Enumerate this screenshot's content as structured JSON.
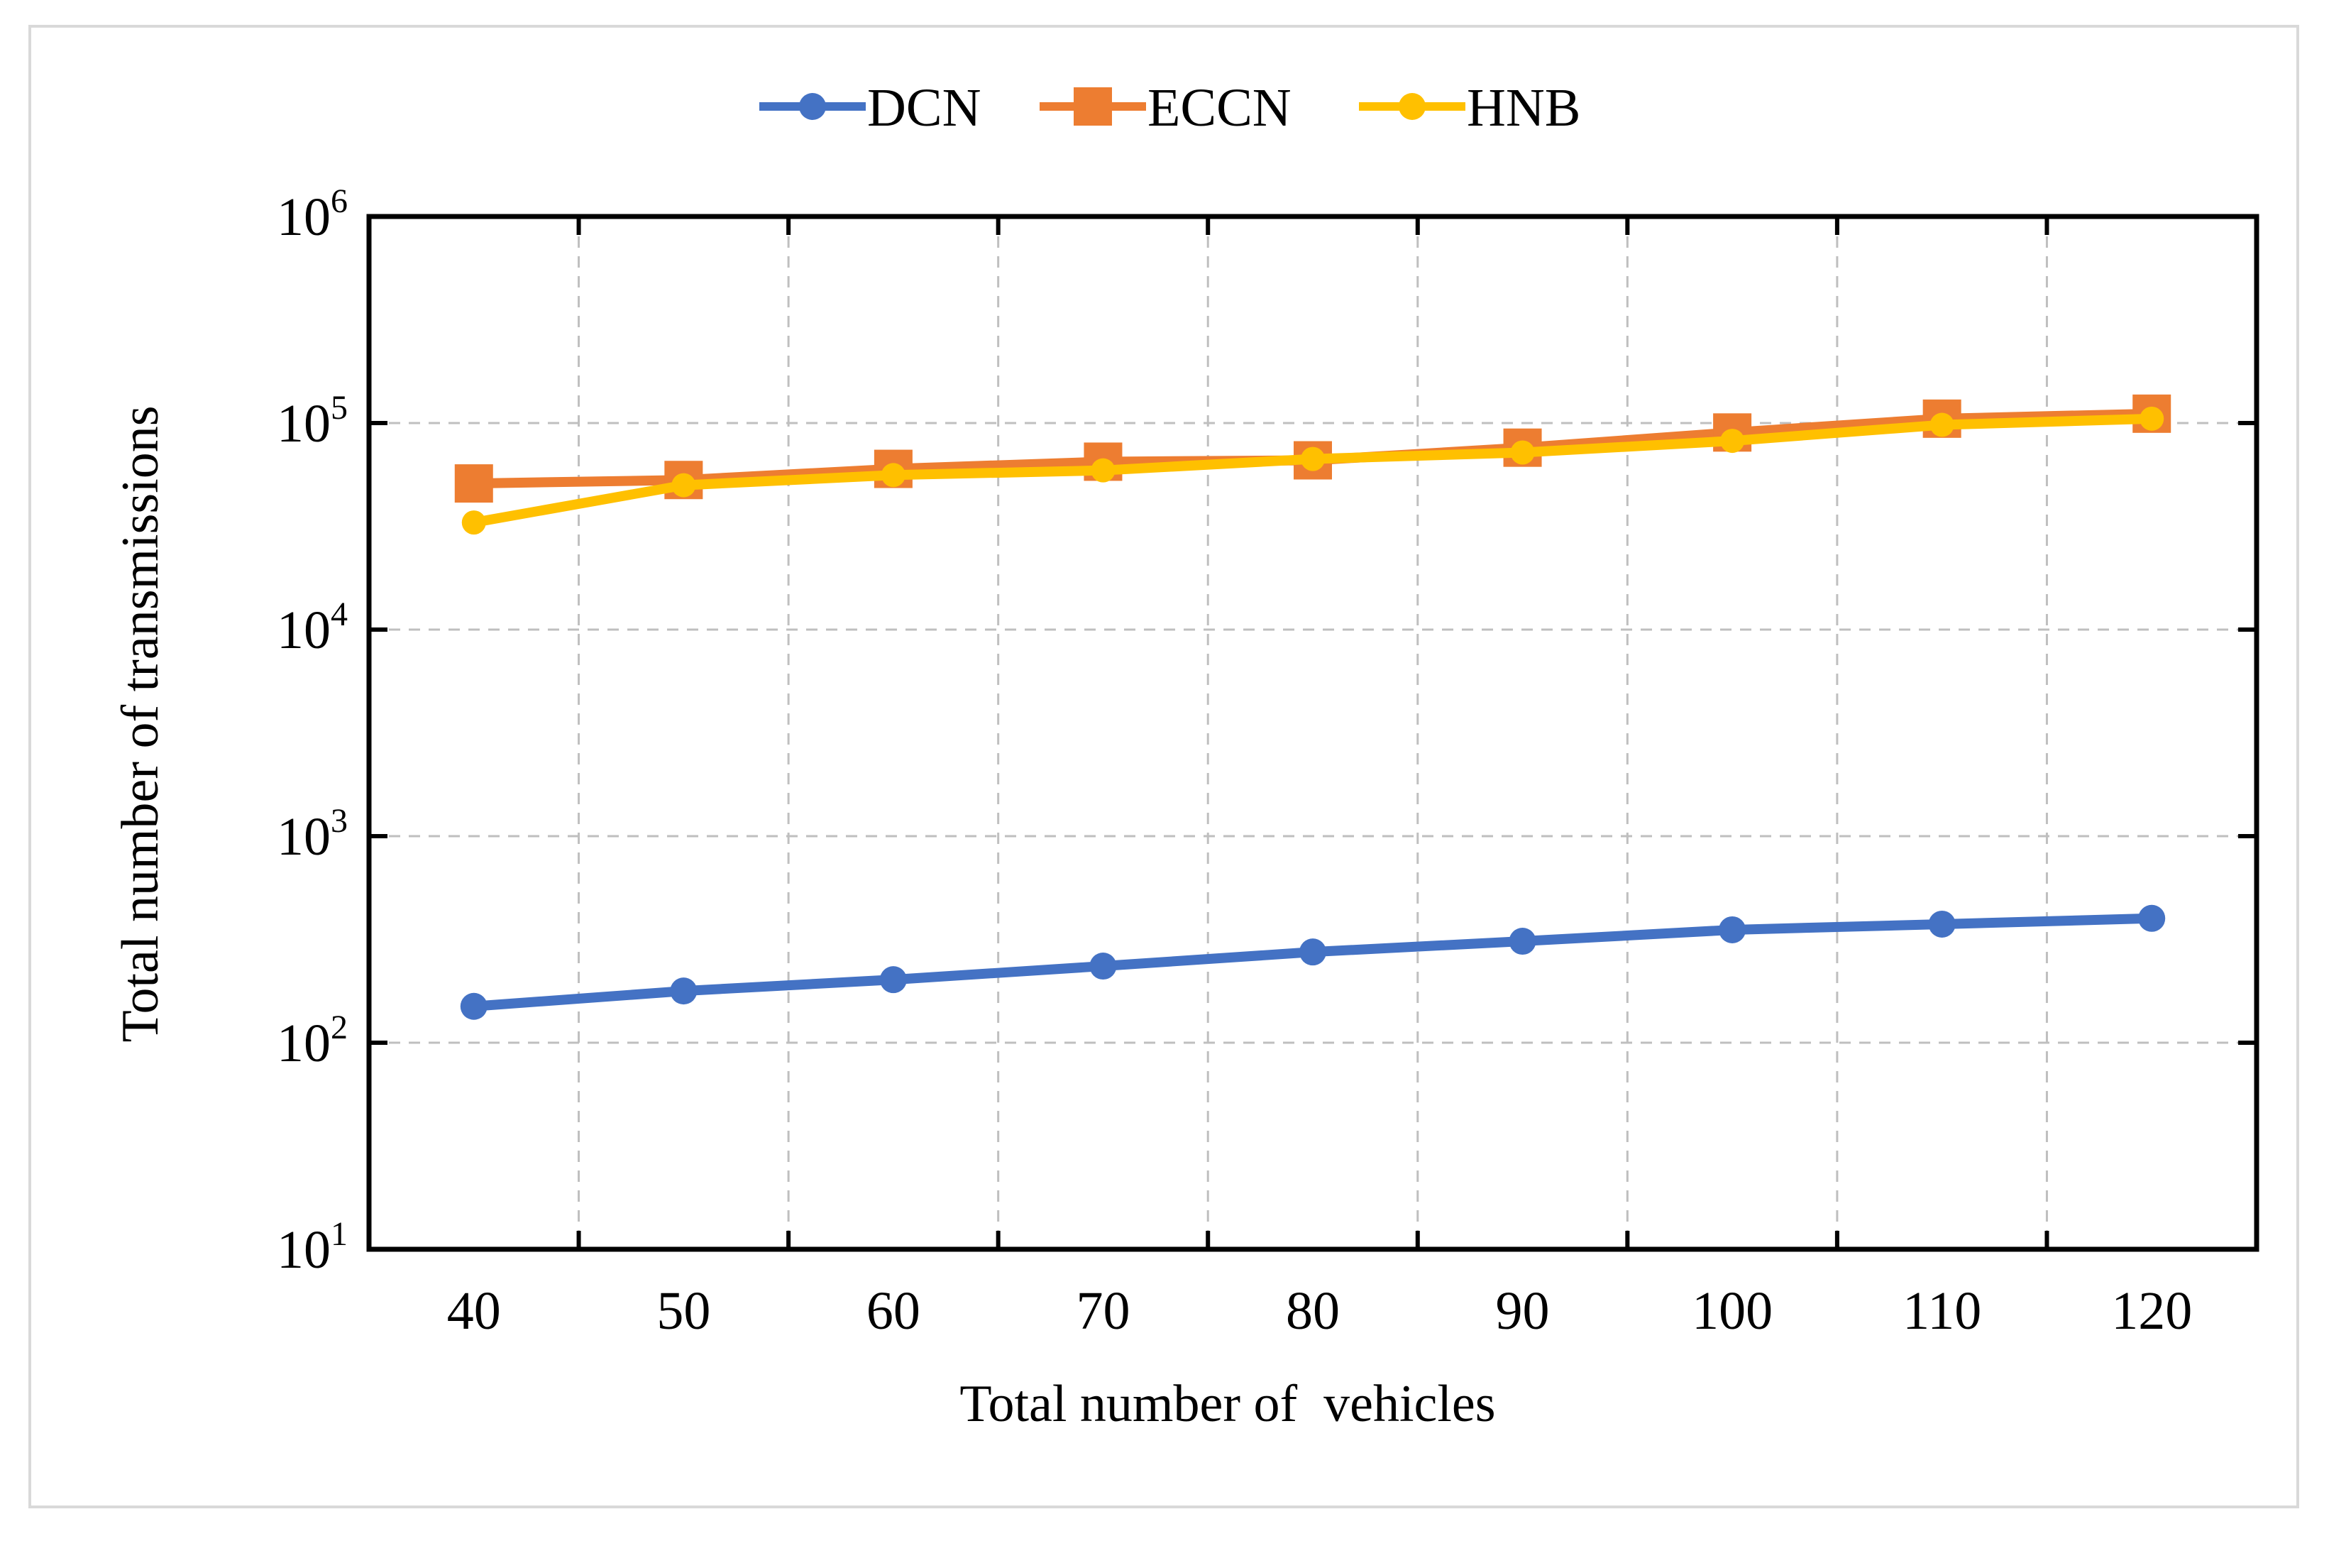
{
  "chart_data": {
    "type": "line",
    "title": "",
    "xlabel": "Total number of  vehicles",
    "ylabel": "Total number of transmissions",
    "y_scale": "log",
    "ylim": [
      10,
      1000000
    ],
    "xlim": [
      35,
      125
    ],
    "grid": true,
    "legend_position": "top-center",
    "categories": [
      40,
      50,
      60,
      70,
      80,
      90,
      100,
      110,
      120
    ],
    "x_tick_labels": [
      "40",
      "50",
      "60",
      "70",
      "80",
      "90",
      "100",
      "110",
      "120"
    ],
    "y_ticks": [
      {
        "value": 10,
        "base": "10",
        "exp": "1"
      },
      {
        "value": 100,
        "base": "10",
        "exp": "2"
      },
      {
        "value": 1000,
        "base": "10",
        "exp": "3"
      },
      {
        "value": 10000,
        "base": "10",
        "exp": "4"
      },
      {
        "value": 100000,
        "base": "10",
        "exp": "5"
      },
      {
        "value": 1000000,
        "base": "10",
        "exp": "6"
      }
    ],
    "series": [
      {
        "name": "DCN",
        "color": "#4472c4",
        "marker": "circle",
        "values": [
          150,
          178,
          202,
          235,
          275,
          310,
          352,
          375,
          400
        ]
      },
      {
        "name": "ECCN",
        "color": "#ed7d31",
        "marker": "square",
        "values": [
          51000,
          53000,
          60000,
          65000,
          66000,
          76000,
          90000,
          105000,
          111000
        ]
      },
      {
        "name": "HNB",
        "color": "#ffc000",
        "marker": "circle",
        "values": [
          33000,
          50000,
          56000,
          59000,
          67000,
          72000,
          82000,
          98000,
          105000
        ]
      }
    ]
  }
}
